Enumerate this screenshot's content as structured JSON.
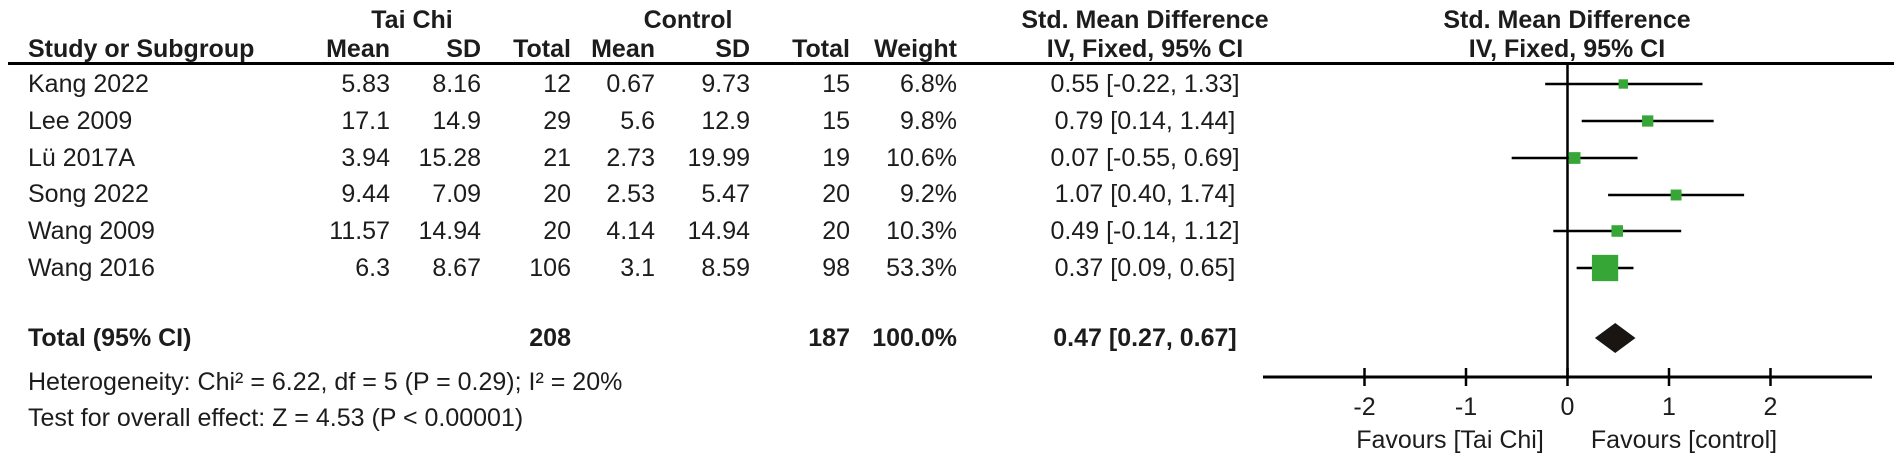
{
  "table": {
    "group1": "Tai Chi",
    "group2": "Control",
    "effect_header": "Std. Mean Difference",
    "effect_subheader": "IV, Fixed, 95% CI",
    "columns": {
      "study": "Study or Subgroup",
      "mean": "Mean",
      "sd": "SD",
      "total": "Total",
      "weight": "Weight",
      "ci": "IV, Fixed, 95% CI"
    },
    "rows": [
      {
        "study": "Kang 2022",
        "mean1": "5.83",
        "sd1": "8.16",
        "total1": "12",
        "mean2": "0.67",
        "sd2": "9.73",
        "total2": "15",
        "weight": "6.8%",
        "ci": "0.55 [-0.22, 1.33]"
      },
      {
        "study": "Lee 2009",
        "mean1": "17.1",
        "sd1": "14.9",
        "total1": "29",
        "mean2": "5.6",
        "sd2": "12.9",
        "total2": "15",
        "weight": "9.8%",
        "ci": "0.79 [0.14, 1.44]"
      },
      {
        "study": "Lü 2017A",
        "mean1": "3.94",
        "sd1": "15.28",
        "total1": "21",
        "mean2": "2.73",
        "sd2": "19.99",
        "total2": "19",
        "weight": "10.6%",
        "ci": "0.07 [-0.55, 0.69]"
      },
      {
        "study": "Song 2022",
        "mean1": "9.44",
        "sd1": "7.09",
        "total1": "20",
        "mean2": "2.53",
        "sd2": "5.47",
        "total2": "20",
        "weight": "9.2%",
        "ci": "1.07 [0.40, 1.74]"
      },
      {
        "study": "Wang 2009",
        "mean1": "11.57",
        "sd1": "14.94",
        "total1": "20",
        "mean2": "4.14",
        "sd2": "14.94",
        "total2": "20",
        "weight": "10.3%",
        "ci": "0.49 [-0.14, 1.12]"
      },
      {
        "study": "Wang 2016",
        "mean1": "6.3",
        "sd1": "8.67",
        "total1": "106",
        "mean2": "3.1",
        "sd2": "8.59",
        "total2": "98",
        "weight": "53.3%",
        "ci": "0.37 [0.09, 0.65]"
      }
    ],
    "total_row": {
      "label": "Total (95% CI)",
      "total1": "208",
      "total2": "187",
      "weight": "100.0%",
      "ci": "0.47 [0.27, 0.67]"
    },
    "heterogeneity": "Heterogeneity: Chi² = 6.22, df = 5 (P = 0.29); I² = 20%",
    "overall_effect": "Test for overall effect: Z = 4.53 (P < 0.00001)"
  },
  "chart_data": {
    "type": "forest",
    "title": "Std. Mean Difference",
    "model": "IV, Fixed, 95% CI",
    "studies": [
      {
        "name": "Kang 2022",
        "estimate": 0.55,
        "ci_low": -0.22,
        "ci_high": 1.33,
        "weight_pct": 6.8
      },
      {
        "name": "Lee 2009",
        "estimate": 0.79,
        "ci_low": 0.14,
        "ci_high": 1.44,
        "weight_pct": 9.8
      },
      {
        "name": "Lü 2017A",
        "estimate": 0.07,
        "ci_low": -0.55,
        "ci_high": 0.69,
        "weight_pct": 10.6
      },
      {
        "name": "Song 2022",
        "estimate": 1.07,
        "ci_low": 0.4,
        "ci_high": 1.74,
        "weight_pct": 9.2
      },
      {
        "name": "Wang 2009",
        "estimate": 0.49,
        "ci_low": -0.14,
        "ci_high": 1.12,
        "weight_pct": 10.3
      },
      {
        "name": "Wang 2016",
        "estimate": 0.37,
        "ci_low": 0.09,
        "ci_high": 0.65,
        "weight_pct": 53.3
      }
    ],
    "overall": {
      "name": "Total (95% CI)",
      "estimate": 0.47,
      "ci_low": 0.27,
      "ci_high": 0.67,
      "weight_pct": 100.0
    },
    "x_ticks": [
      -2,
      -1,
      0,
      1,
      2
    ],
    "xlim": [
      -3,
      3
    ],
    "zero_line": 0,
    "axis_labels": {
      "left": "Favours [Tai Chi]",
      "right": "Favours [control]"
    },
    "marker_color": "#36a636",
    "diamond_color": "#181512",
    "line_color": "#000000",
    "text_color": "#1c1c1c",
    "legend_position": "none",
    "grid": false
  }
}
